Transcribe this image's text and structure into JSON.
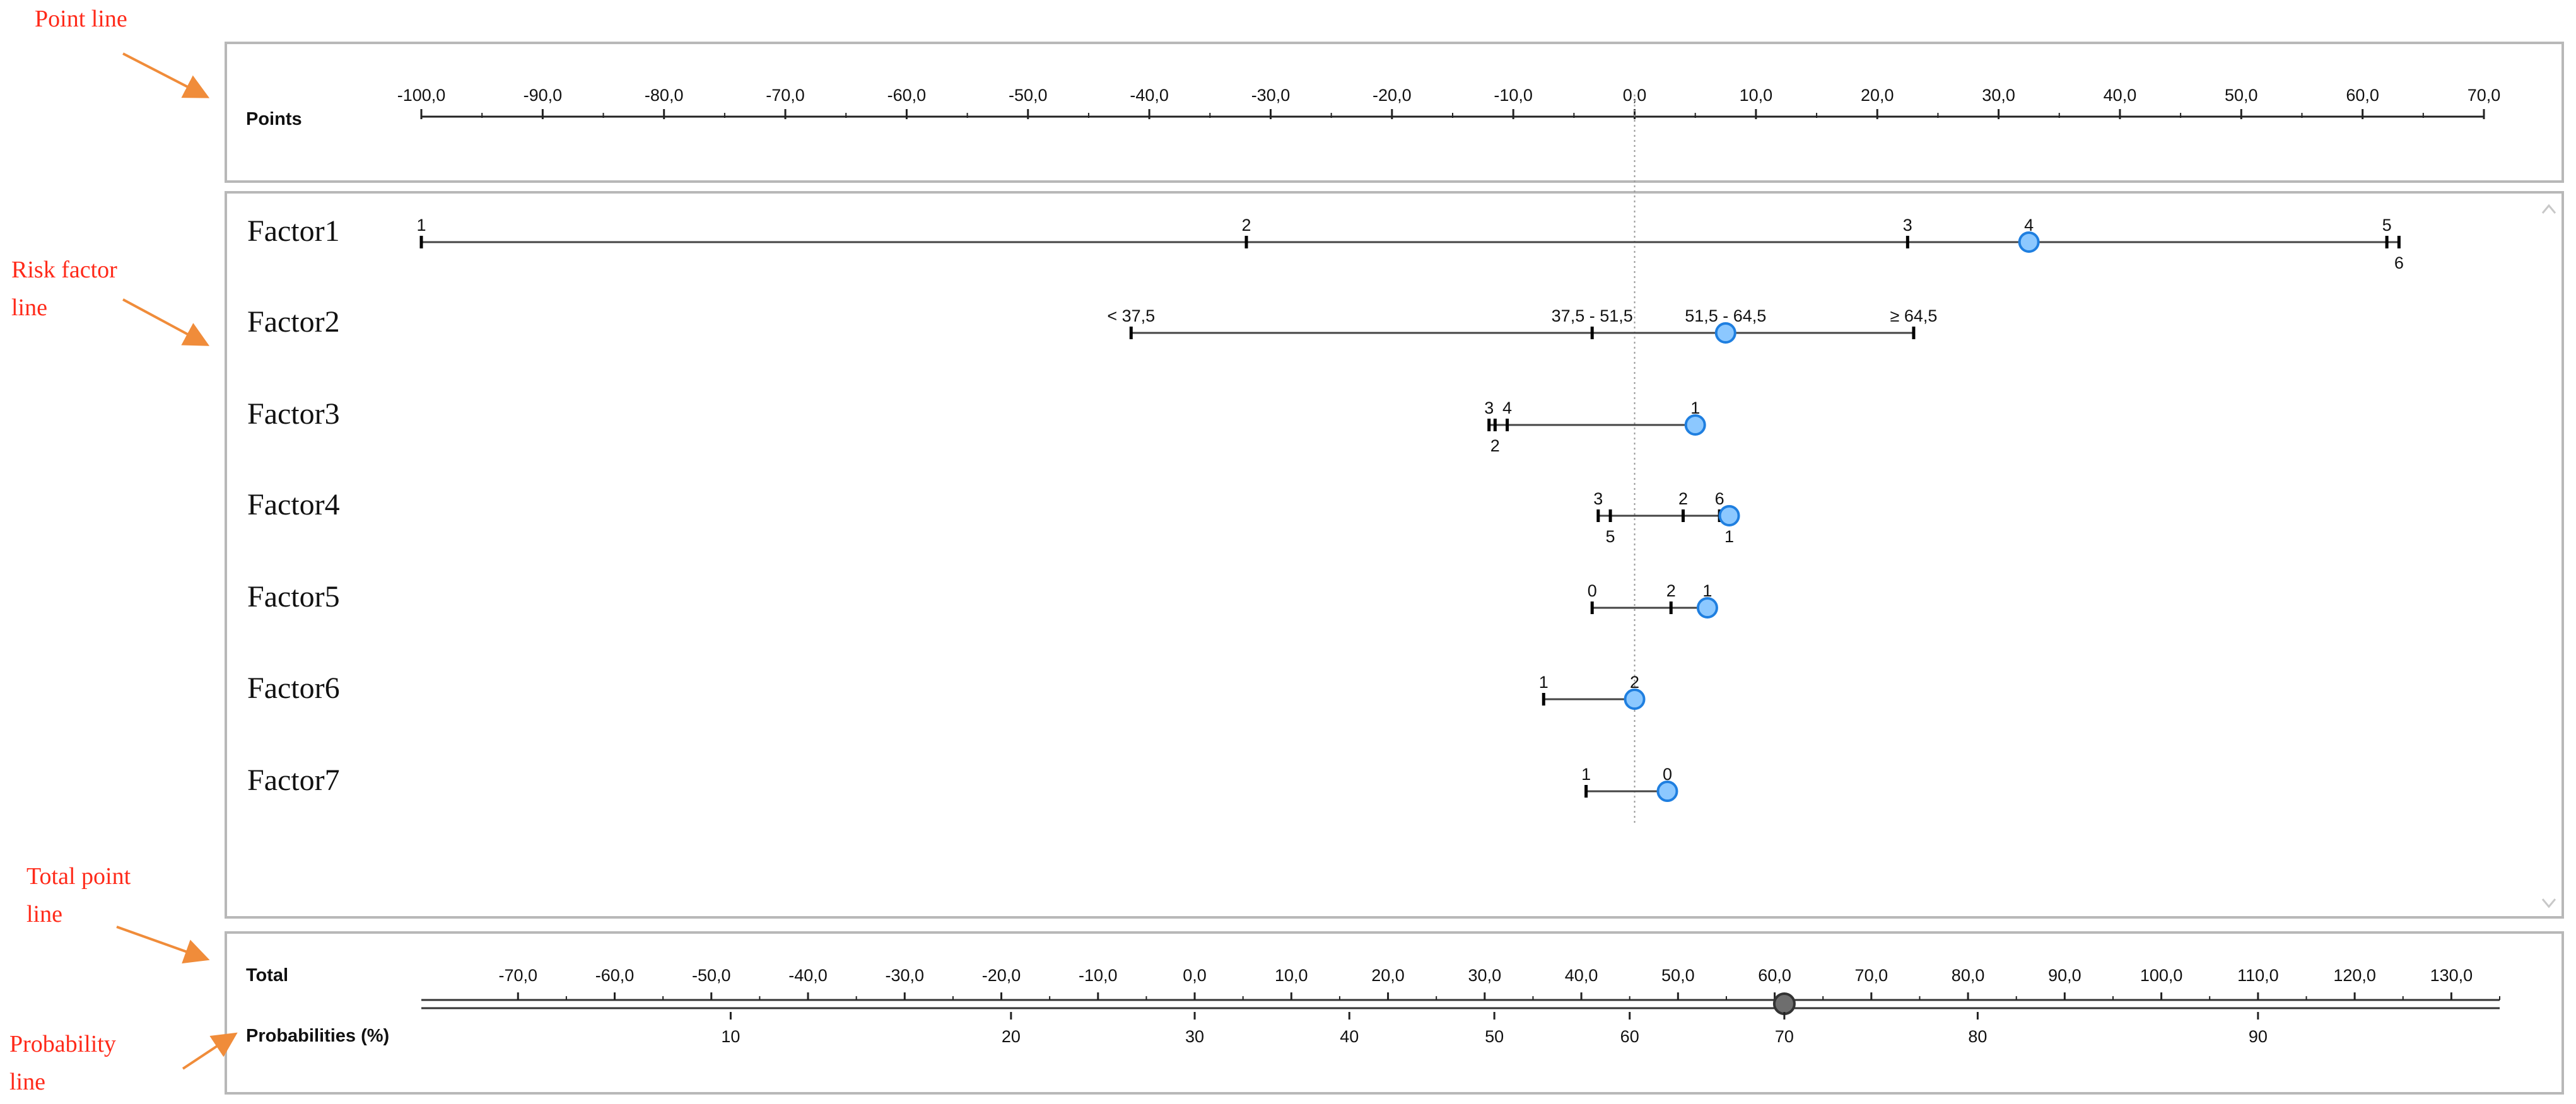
{
  "annotations": {
    "point_line": "Point line",
    "risk_factor_line": [
      "Risk factor",
      "line"
    ],
    "total_point_line": [
      "Total point",
      "line"
    ],
    "probability_line": [
      "Probability",
      "line"
    ]
  },
  "colors": {
    "annotation": "#ff2a1a",
    "arrow": "#f08c3a",
    "marker_fill": "#8cc8ff",
    "marker_stroke": "#1f7fe0",
    "total_marker": "#6e6e6e",
    "panel_border": "#b8b8b8"
  },
  "chart_data": {
    "type": "nomogram",
    "points_axis": {
      "label": "Points",
      "range": [
        -100,
        70
      ],
      "ticks": [
        "-100,0",
        "-90,0",
        "-80,0",
        "-70,0",
        "-60,0",
        "-50,0",
        "-40,0",
        "-30,0",
        "-20,0",
        "-10,0",
        "0,0",
        "10,0",
        "20,0",
        "30,0",
        "40,0",
        "50,0",
        "60,0",
        "70,0"
      ],
      "tick_values": [
        -100,
        -90,
        -80,
        -70,
        -60,
        -50,
        -40,
        -30,
        -20,
        -10,
        0,
        10,
        20,
        30,
        40,
        50,
        60,
        70
      ],
      "reference_line_at": 0
    },
    "factors": [
      {
        "name": "Factor1",
        "levels": [
          {
            "label": "1",
            "points": -100,
            "label_pos": "above"
          },
          {
            "label": "2",
            "points": -32,
            "label_pos": "above"
          },
          {
            "label": "3",
            "points": 22.5,
            "label_pos": "above"
          },
          {
            "label": "4",
            "points": 32.5,
            "label_pos": "above"
          },
          {
            "label": "5",
            "points": 62,
            "label_pos": "above"
          },
          {
            "label": "6",
            "points": 63,
            "label_pos": "below"
          }
        ],
        "selected_points": 32.5
      },
      {
        "name": "Factor2",
        "levels": [
          {
            "label": "< 37,5",
            "points": -41.5,
            "label_pos": "above"
          },
          {
            "label": "37,5 - 51,5",
            "points": -3.5,
            "label_pos": "above"
          },
          {
            "label": "51,5 - 64,5",
            "points": 7.5,
            "label_pos": "above"
          },
          {
            "label": "≥ 64,5",
            "points": 23,
            "label_pos": "above"
          }
        ],
        "selected_points": 7.5
      },
      {
        "name": "Factor3",
        "levels": [
          {
            "label": "3",
            "points": -12,
            "label_pos": "above"
          },
          {
            "label": "4",
            "points": -10.5,
            "label_pos": "above"
          },
          {
            "label": "2",
            "points": -11.5,
            "label_pos": "below"
          },
          {
            "label": "1",
            "points": 5,
            "label_pos": "above"
          }
        ],
        "selected_points": 5
      },
      {
        "name": "Factor4",
        "levels": [
          {
            "label": "3",
            "points": -3,
            "label_pos": "above"
          },
          {
            "label": "5",
            "points": -2,
            "label_pos": "below"
          },
          {
            "label": "2",
            "points": 4,
            "label_pos": "above"
          },
          {
            "label": "6",
            "points": 7,
            "label_pos": "above"
          },
          {
            "label": "1",
            "points": 7.8,
            "label_pos": "below"
          }
        ],
        "selected_points": 7.8
      },
      {
        "name": "Factor5",
        "levels": [
          {
            "label": "0",
            "points": -3.5,
            "label_pos": "above"
          },
          {
            "label": "2",
            "points": 3,
            "label_pos": "above"
          },
          {
            "label": "1",
            "points": 6,
            "label_pos": "above"
          }
        ],
        "selected_points": 6
      },
      {
        "name": "Factor6",
        "levels": [
          {
            "label": "1",
            "points": -7.5,
            "label_pos": "above"
          },
          {
            "label": "2",
            "points": 0,
            "label_pos": "above"
          }
        ],
        "selected_points": 0
      },
      {
        "name": "Factor7",
        "levels": [
          {
            "label": "1",
            "points": -4,
            "label_pos": "above"
          },
          {
            "label": "0",
            "points": 2.7,
            "label_pos": "above"
          }
        ],
        "selected_points": 2.7
      }
    ],
    "total_axis": {
      "label": "Total",
      "range": [
        -80,
        135
      ],
      "ticks": [
        "-70,0",
        "-60,0",
        "-50,0",
        "-40,0",
        "-30,0",
        "-20,0",
        "-10,0",
        "0,0",
        "10,0",
        "20,0",
        "30,0",
        "40,0",
        "50,0",
        "60,0",
        "70,0",
        "80,0",
        "90,0",
        "100,0",
        "110,0",
        "120,0",
        "130,0"
      ],
      "tick_values": [
        -70,
        -60,
        -50,
        -40,
        -30,
        -20,
        -10,
        0,
        10,
        20,
        30,
        40,
        50,
        60,
        70,
        80,
        90,
        100,
        110,
        120,
        130
      ],
      "selected_total": 61
    },
    "probability_axis": {
      "label": "Probabilities (%)",
      "ticks": [
        "10",
        "20",
        "30",
        "40",
        "50",
        "60",
        "70",
        "80",
        "90"
      ],
      "tick_totals": [
        -48,
        -19,
        0,
        16,
        31,
        45,
        61,
        81,
        110
      ]
    }
  }
}
